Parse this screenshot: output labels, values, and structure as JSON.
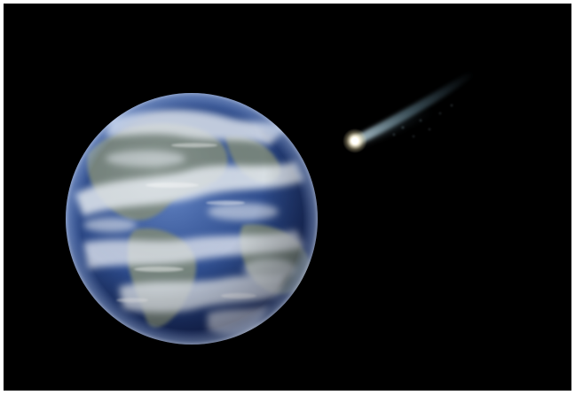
{
  "scene": {
    "subjects": [
      "earth-planet",
      "comet"
    ],
    "colors": {
      "background": "#000000",
      "frame": "#ffffff",
      "ocean": "#2c4a8a",
      "land": "#7e8a7c",
      "cloud": "#e9eef5",
      "comet_head": "#fff8e4",
      "comet_tail": "#7fa6b8"
    }
  }
}
